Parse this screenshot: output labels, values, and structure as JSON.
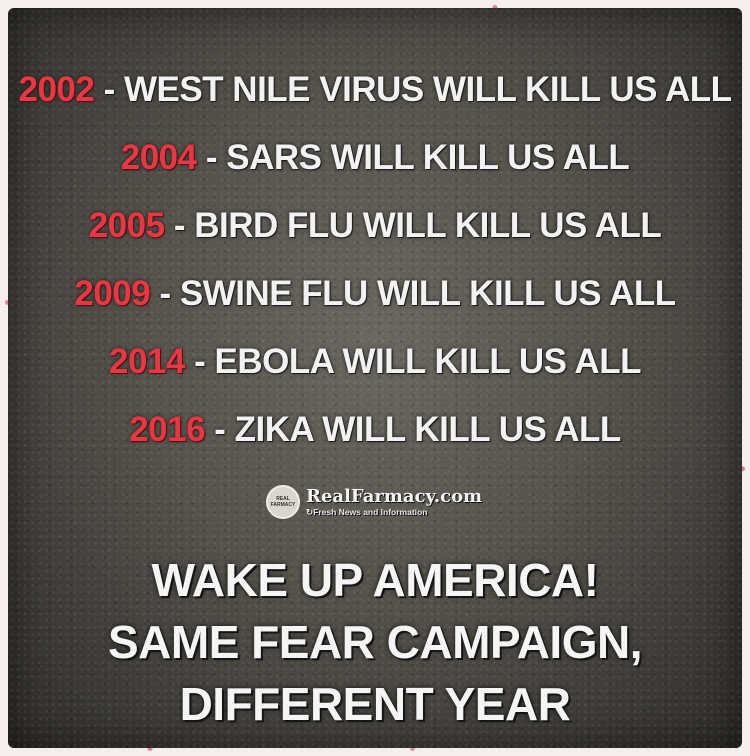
{
  "timeline": [
    {
      "year": "2002",
      "text": " - WEST NILE VIRUS WILL KILL US ALL"
    },
    {
      "year": "2004",
      "text": " - SARS WILL KILL US ALL"
    },
    {
      "year": "2005",
      "text": " - BIRD FLU WILL KILL US ALL"
    },
    {
      "year": "2009",
      "text": " - SWINE FLU WILL KILL US ALL"
    },
    {
      "year": "2014",
      "text": " - EBOLA WILL KILL US ALL"
    },
    {
      "year": "2016",
      "text": " - ZIKA WILL KILL US ALL"
    }
  ],
  "logo": {
    "badge_top": "REAL",
    "badge_bottom": "FARMACY",
    "name": "RealFarmacy.com",
    "tagline": "Fresh News and Information"
  },
  "headline": {
    "line1": "WAKE UP AMERICA!",
    "line2": "SAME FEAR CAMPAIGN,",
    "line3": "DIFFERENT YEAR"
  },
  "colors": {
    "year": "#e23a45",
    "text": "#f2f2f2",
    "background": "#55524c"
  }
}
